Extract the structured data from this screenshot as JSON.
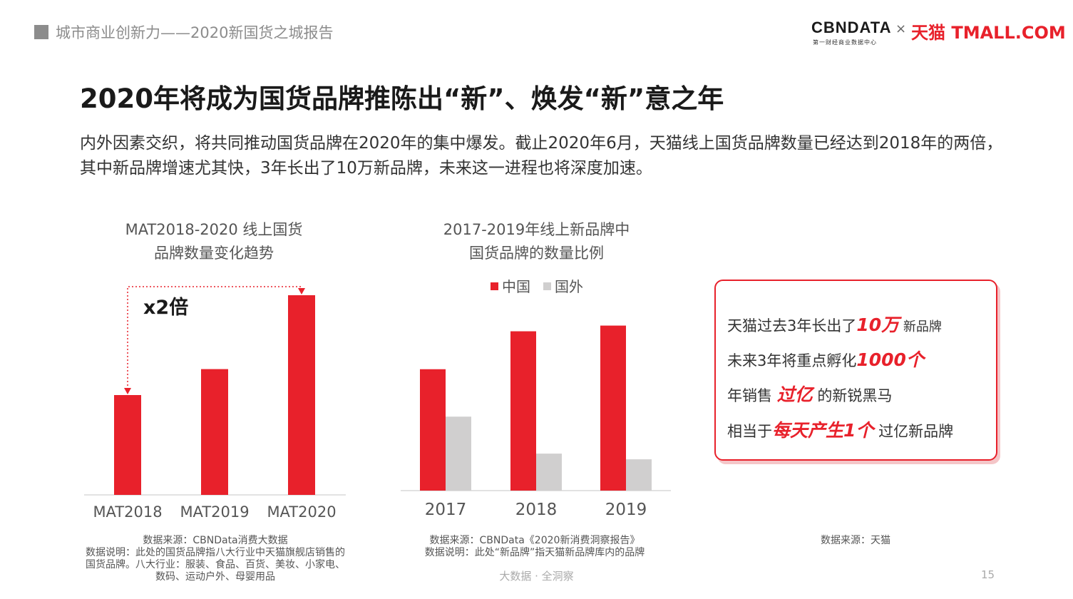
{
  "header": {
    "title": "城市商业创新力——2020新国货之城报告",
    "logo_cbn": "CBNDATA",
    "logo_cbn_sub": "第一财经商业数据中心",
    "logo_x": "×",
    "logo_tmall": "天猫 TMALL.COM"
  },
  "main": {
    "title": "2020年将成为国货品牌推陈出“新”、焕发“新”意之年",
    "intro": "内外因素交织，将共同推动国货品牌在2020年的集中爆发。截止2020年6月，天猫线上国货品牌数量已经达到2018年的两倍，其中新品牌增速尤其快，3年长出了10万新品牌，未来这一进程也将深度加速。"
  },
  "chart_data": [
    {
      "type": "bar",
      "title_lines": [
        "MAT2018-2020 线上国货",
        "品牌数量变化趋势"
      ],
      "categories": [
        "MAT2018",
        "MAT2019",
        "MAT2020"
      ],
      "values": [
        1.0,
        1.26,
        2.0
      ],
      "ylim": [
        0,
        2.1
      ],
      "annotation": {
        "from": 0,
        "to": 2,
        "label": "x2倍"
      },
      "color": "#e8212b"
    },
    {
      "type": "bar",
      "title_lines": [
        "2017-2019年线上新品牌中",
        "国货品牌的数量比例"
      ],
      "categories": [
        "2017",
        "2018",
        "2019"
      ],
      "series": [
        {
          "name": "中国",
          "color": "#e8212b",
          "values": [
            0.64,
            0.84,
            0.87
          ]
        },
        {
          "name": "国外",
          "color": "#d0cfcf",
          "values": [
            0.39,
            0.195,
            0.165
          ]
        }
      ],
      "ylim": [
        0,
        1.0
      ],
      "legend": "top"
    }
  ],
  "highlights": {
    "row1": {
      "pre": "天猫过去3年长出了",
      "em": "10万",
      "post": " 新品牌"
    },
    "row2": {
      "pre": "未来3年将重点孵化",
      "em": "1000个",
      "post": ""
    },
    "row3": {
      "pre": "年销售 ",
      "em": "过亿",
      "post": " 的新锐黑马"
    },
    "row4": {
      "pre": "相当于",
      "em": "每天产生1个",
      "post": " 过亿新品牌"
    }
  },
  "notes": {
    "note1": [
      "数据来源：CBNData消费大数据",
      "数据说明：此处的国货品牌指八大行业中天猫旗舰店销售的",
      "国货品牌。八大行业：服装、食品、百货、美妆、小家电、",
      "数码、运动户外、母婴用品"
    ],
    "note2": [
      "数据来源：CBNData《2020新消费洞察报告》",
      "数据说明：此处“新品牌”指天猫新品牌库内的品牌"
    ],
    "note3": [
      "数据来源：天猫"
    ]
  },
  "footer": {
    "tagline": "大数据 · 全洞察",
    "page": "15"
  }
}
